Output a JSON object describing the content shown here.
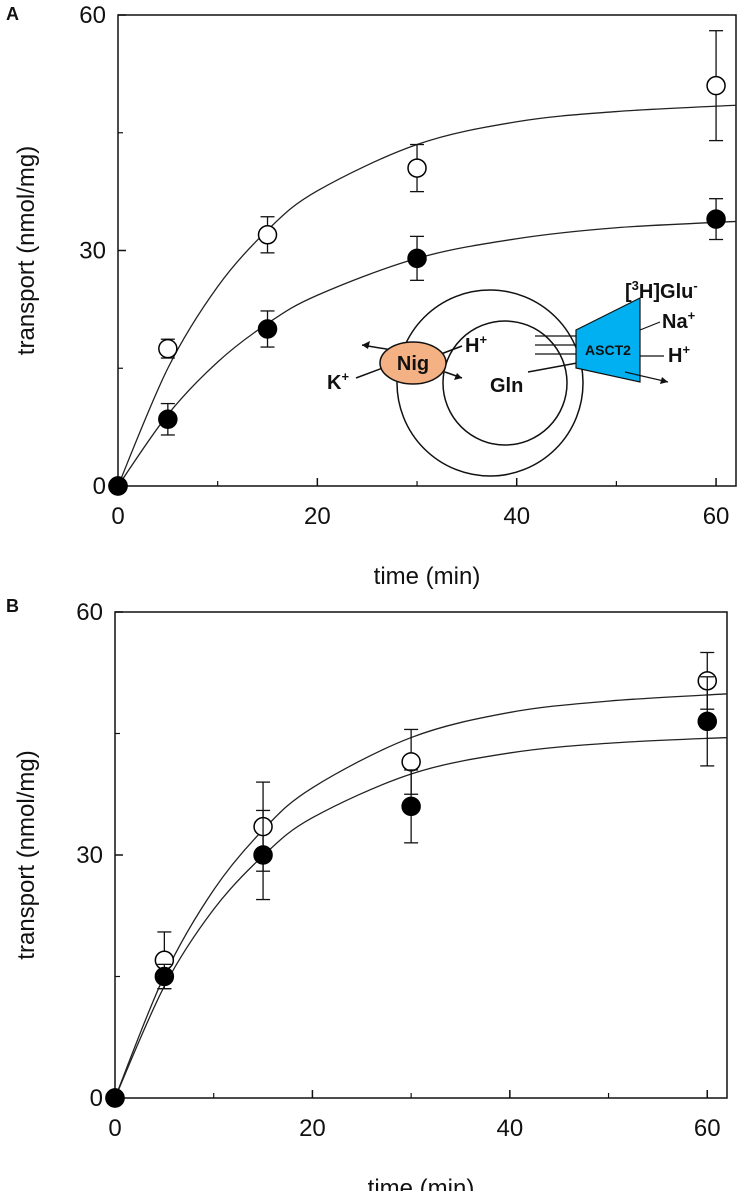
{
  "chart_data": [
    {
      "type": "scatter",
      "panel": "A",
      "xlabel": "time (min)",
      "ylabel": "transport (nmol/mg)",
      "xlim": [
        0,
        62
      ],
      "ylim": [
        0,
        60
      ],
      "xticks": [
        0,
        20,
        40,
        60
      ],
      "yticks": [
        0,
        30,
        60
      ],
      "xminor": [
        10,
        30,
        50
      ],
      "yminor": [
        15,
        45
      ],
      "series": [
        {
          "marker": "open",
          "x": [
            0,
            5,
            15,
            30,
            60
          ],
          "values": [
            0,
            17.5,
            32,
            40.5,
            51
          ],
          "errors": [
            null,
            1.2,
            2.3,
            3,
            7
          ],
          "fit": {
            "x": [
              0,
              5,
              10,
              15,
              20,
              30,
              40,
              50,
              62
            ],
            "values": [
              0,
              15.0,
              25.4,
              32.6,
              37.6,
              43.5,
              46.4,
              47.7,
              48.5
            ]
          }
        },
        {
          "marker": "filled",
          "x": [
            0,
            5,
            15,
            30,
            60
          ],
          "values": [
            0,
            8.5,
            20,
            29,
            34
          ],
          "errors": [
            null,
            2,
            2.3,
            2.8,
            2.6
          ],
          "fit": {
            "x": [
              0,
              5,
              10,
              15,
              20,
              30,
              40,
              50,
              62
            ],
            "values": [
              0,
              9.1,
              15.8,
              20.7,
              24.3,
              29.0,
              31.5,
              32.9,
              33.7
            ]
          }
        }
      ],
      "inset": {
        "nig": "Nig",
        "asct2": "ASCT2",
        "h_left": {
          "text": "H",
          "sup": "+"
        },
        "k": {
          "text": "K",
          "sup": "+"
        },
        "gln": "Gln",
        "glu": {
          "pre": "[",
          "sup1": "3",
          "text": "H]Glu",
          "sup": "-"
        },
        "na": {
          "text": "Na",
          "sup": "+"
        },
        "h_right": {
          "text": "H",
          "sup": "+"
        }
      }
    },
    {
      "type": "scatter",
      "panel": "B",
      "xlabel": "time (min)",
      "ylabel": "transport (nmol/mg)",
      "xlim": [
        0,
        62
      ],
      "ylim": [
        0,
        60
      ],
      "xticks": [
        0,
        20,
        40,
        60
      ],
      "yticks": [
        0,
        30,
        60
      ],
      "xminor": [
        10,
        30,
        50
      ],
      "yminor": [
        15,
        45
      ],
      "series": [
        {
          "marker": "open",
          "x": [
            0,
            5,
            15,
            30,
            60
          ],
          "values": [
            0,
            17,
            33.5,
            41.5,
            51.5
          ],
          "errors": [
            null,
            3.5,
            5.5,
            4,
            3.5
          ],
          "fit": {
            "x": [
              0,
              5,
              10,
              15,
              20,
              30,
              40,
              50,
              62
            ],
            "values": [
              0,
              15.1,
              25.7,
              33.1,
              38.3,
              44.5,
              47.6,
              49.0,
              49.9
            ]
          }
        },
        {
          "marker": "filled",
          "x": [
            0,
            5,
            15,
            30,
            60
          ],
          "values": [
            0,
            15,
            30,
            36,
            46.5
          ],
          "errors": [
            null,
            1.5,
            5.5,
            4.5,
            5.5
          ],
          "fit": {
            "x": [
              0,
              5,
              10,
              15,
              20,
              30,
              40,
              50,
              62
            ],
            "values": [
              0,
              13.8,
              23.3,
              29.9,
              34.6,
              40.0,
              42.6,
              43.8,
              44.5
            ]
          }
        }
      ]
    }
  ]
}
